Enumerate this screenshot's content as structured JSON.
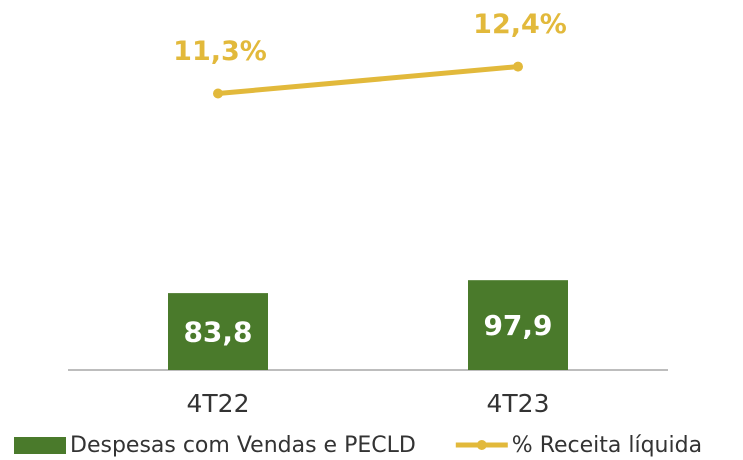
{
  "chart_data": {
    "type": "bar-line",
    "categories": [
      "4T22",
      "4T23"
    ],
    "series": [
      {
        "name": "Despesas com Vendas e PECLD",
        "type": "bar",
        "color": "#4a7a2b",
        "values": [
          83.8,
          97.9
        ],
        "value_labels": [
          "83,8",
          "97,9"
        ]
      },
      {
        "name": "% Receita líquida",
        "type": "line",
        "axis": "y2",
        "color": "#e2b93b",
        "values": [
          11.3,
          12.4
        ],
        "value_labels": [
          "11,3%",
          "12,4%"
        ]
      }
    ],
    "ylim": [
      0,
      400
    ],
    "y2lim": [
      0,
      15
    ],
    "legend": "bottom"
  }
}
